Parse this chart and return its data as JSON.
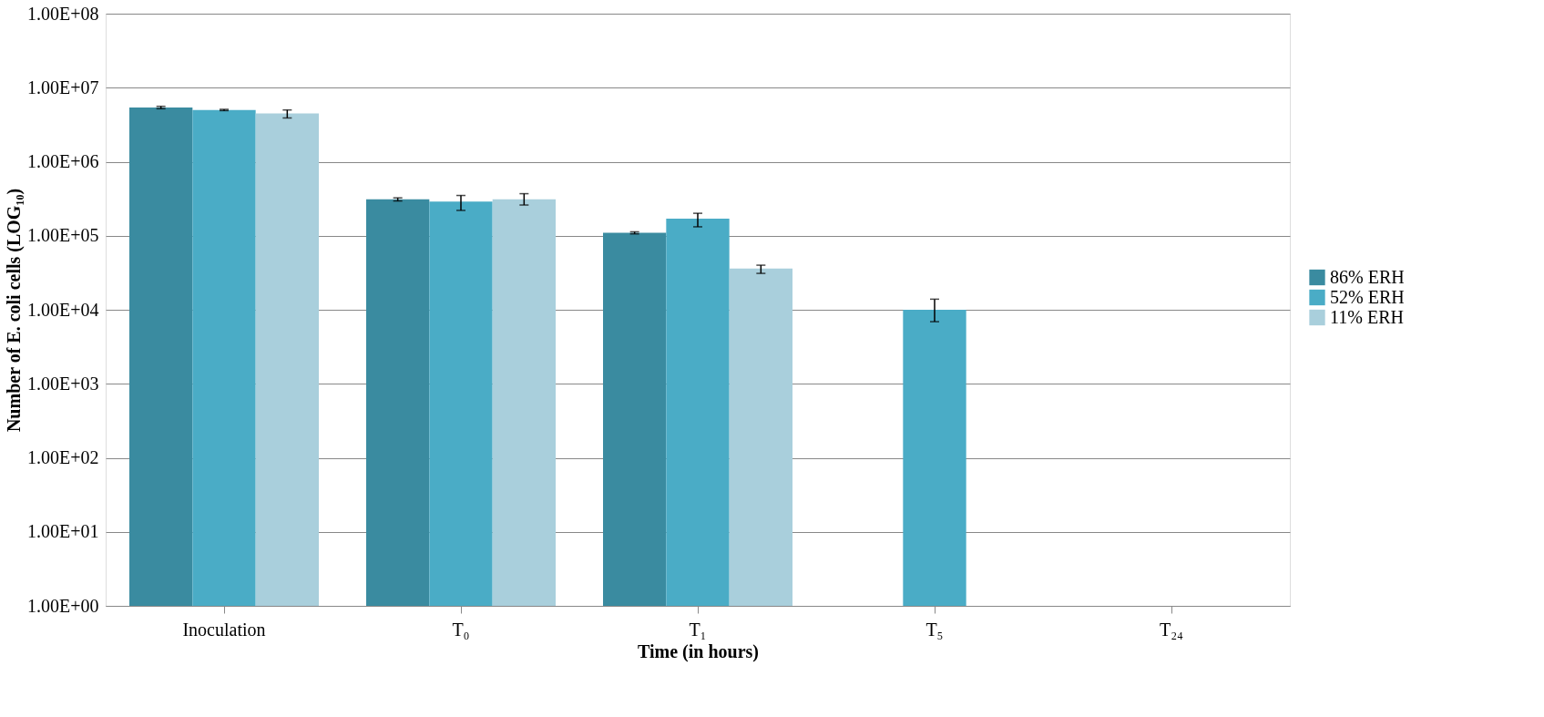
{
  "chart_data": {
    "type": "bar",
    "xlabel": "Time (in hours)",
    "ylabel": "Number of E. coli cells (LOG₁₀)",
    "categories": [
      "Inoculation",
      "T₀",
      "T₁",
      "T₅",
      "T₂₄"
    ],
    "series": [
      {
        "name": "86% ERH",
        "color": "#3a8ba0",
        "values": [
          5400000,
          310000,
          110000,
          null,
          null
        ],
        "errors": [
          [
            5200000,
            5600000
          ],
          [
            295000,
            325000
          ],
          [
            106000,
            113000
          ],
          null,
          null
        ]
      },
      {
        "name": "52% ERH",
        "color": "#4aacc6",
        "values": [
          5000000,
          290000,
          170000,
          10000,
          null
        ],
        "errors": [
          [
            4900000,
            5100000
          ],
          [
            220000,
            350000
          ],
          [
            132000,
            201000
          ],
          [
            6900,
            13900
          ],
          null
        ]
      },
      {
        "name": "11% ERH",
        "color": "#a9cfdc",
        "values": [
          4500000,
          310000,
          36000,
          null,
          null
        ],
        "errors": [
          [
            3900000,
            5000000
          ],
          [
            260000,
            370000
          ],
          [
            31000,
            40000
          ],
          null,
          null
        ]
      }
    ],
    "log": true,
    "ylim": [
      1,
      100000000
    ],
    "yticks": [
      {
        "value": 1,
        "label": "1.00E+00"
      },
      {
        "value": 10,
        "label": "1.00E+01"
      },
      {
        "value": 100,
        "label": "1.00E+02"
      },
      {
        "value": 1000,
        "label": "1.00E+03"
      },
      {
        "value": 10000,
        "label": "1.00E+04"
      },
      {
        "value": 100000,
        "label": "1.00E+05"
      },
      {
        "value": 1000000,
        "label": "1.00E+06"
      },
      {
        "value": 10000000,
        "label": "1.00E+07"
      },
      {
        "value": 100000000,
        "label": "1.00E+08"
      }
    ],
    "grid": "y",
    "legend": "right"
  }
}
